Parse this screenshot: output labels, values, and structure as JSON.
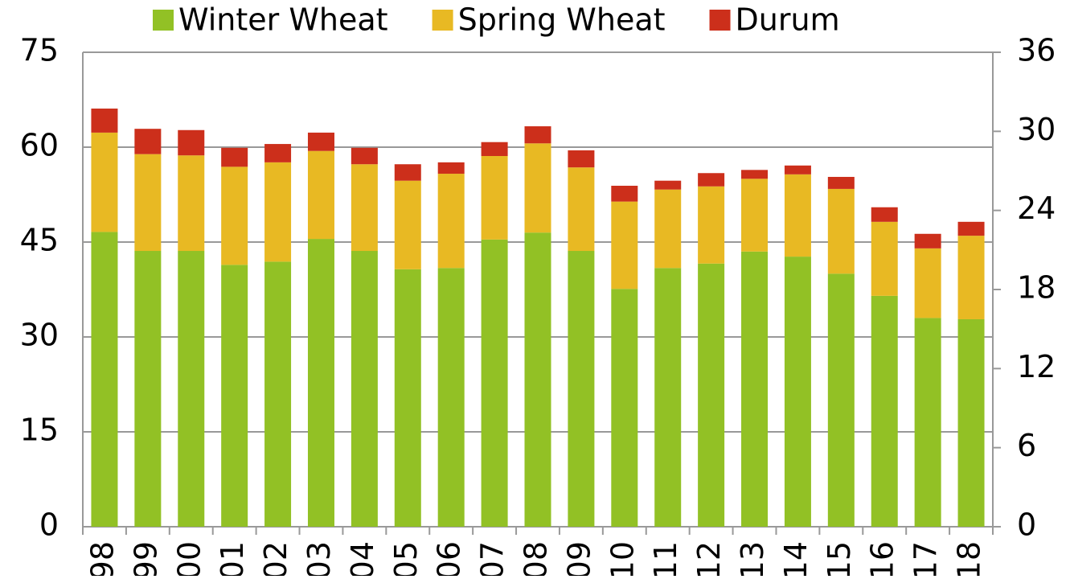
{
  "chart_data": {
    "type": "stacked_bar",
    "categories": [
      "98",
      "99",
      "00",
      "01",
      "02",
      "03",
      "04",
      "05",
      "06",
      "07",
      "08",
      "09",
      "10",
      "11",
      "12",
      "13",
      "14",
      "15",
      "16",
      "17",
      "18"
    ],
    "series": [
      {
        "name": "Winter Wheat",
        "color": "#92c125",
        "values": [
          46.6,
          43.6,
          43.6,
          41.4,
          41.9,
          45.5,
          43.6,
          40.7,
          40.9,
          45.4,
          46.5,
          43.6,
          37.6,
          40.9,
          41.6,
          43.5,
          42.7,
          40.0,
          36.5,
          33.0,
          32.8
        ]
      },
      {
        "name": "Spring Wheat",
        "color": "#e8b923",
        "values": [
          15.7,
          15.3,
          15.1,
          15.5,
          15.7,
          13.9,
          13.7,
          14.0,
          14.9,
          13.2,
          14.1,
          13.2,
          13.8,
          12.4,
          12.2,
          11.5,
          13.0,
          13.4,
          11.7,
          11.0,
          13.2
        ]
      },
      {
        "name": "Durum",
        "color": "#cc2f1b",
        "values": [
          3.8,
          4.0,
          4.0,
          3.0,
          2.9,
          2.9,
          2.6,
          2.6,
          1.8,
          2.2,
          2.7,
          2.7,
          2.5,
          1.4,
          2.1,
          1.4,
          1.4,
          1.9,
          2.3,
          2.3,
          2.2
        ]
      }
    ],
    "ylim": [
      0,
      75
    ],
    "yticks": [
      0,
      15,
      30,
      45,
      60,
      75
    ],
    "y2lim": [
      0,
      36
    ],
    "y2ticks": [
      0,
      6,
      12,
      18,
      24,
      30,
      36
    ],
    "grid": true,
    "legend": "top"
  }
}
